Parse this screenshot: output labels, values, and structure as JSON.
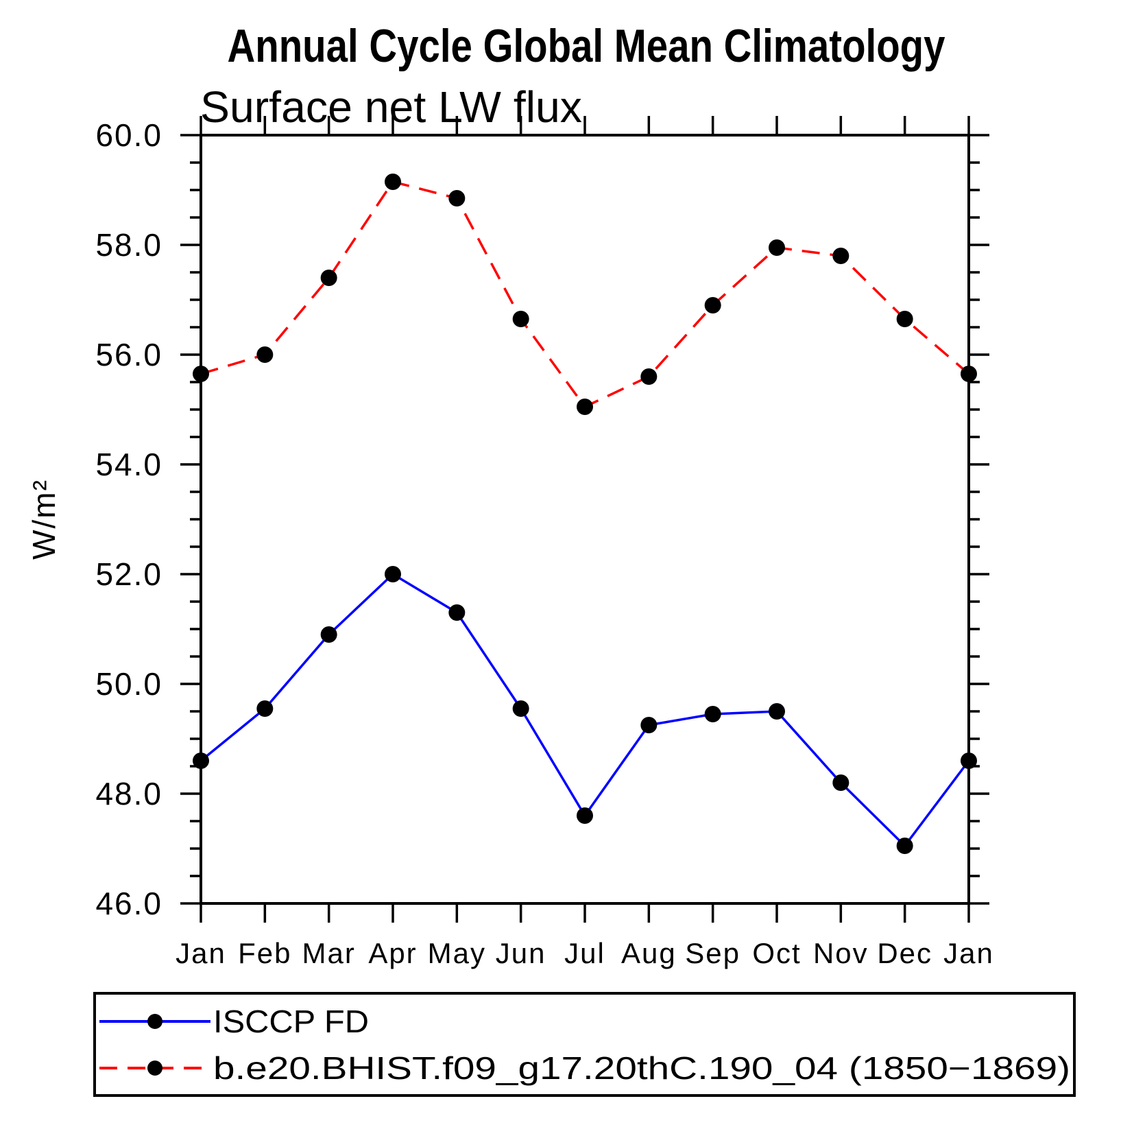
{
  "header": {
    "title": "Annual Cycle Global Mean Climatology",
    "subtitle": "Surface net LW flux"
  },
  "chart_data": {
    "type": "line",
    "categories": [
      "Jan",
      "Feb",
      "Mar",
      "Apr",
      "May",
      "Jun",
      "Jul",
      "Aug",
      "Sep",
      "Oct",
      "Nov",
      "Dec",
      "Jan"
    ],
    "ylabel": "W/m²",
    "ylim": [
      46.0,
      60.0
    ],
    "ytick_step": 2.0,
    "yminor_step": 0.5,
    "ytick_labels": [
      "46.0",
      "48.0",
      "50.0",
      "52.0",
      "54.0",
      "56.0",
      "58.0",
      "60.0"
    ],
    "grid": false,
    "frame_color": "#000000",
    "marker_color": "#000000",
    "marker_shape": "filled-circle",
    "legend_position": "bottom-left-box",
    "series": [
      {
        "name": "ISCCP FD",
        "color": "#0000ff",
        "line_style": "solid",
        "values": [
          48.6,
          49.55,
          50.9,
          52.0,
          51.3,
          49.55,
          47.6,
          49.25,
          49.45,
          49.5,
          48.2,
          47.05,
          48.6
        ]
      },
      {
        "name": "b.e20.BHIST.f09_g17.20thC.190_04 (1850−1869)",
        "color": "#ff0000",
        "line_style": "dashed",
        "values": [
          55.65,
          56.0,
          57.4,
          59.15,
          58.85,
          56.65,
          55.05,
          55.6,
          56.9,
          57.95,
          57.8,
          56.65,
          55.65
        ]
      }
    ]
  }
}
